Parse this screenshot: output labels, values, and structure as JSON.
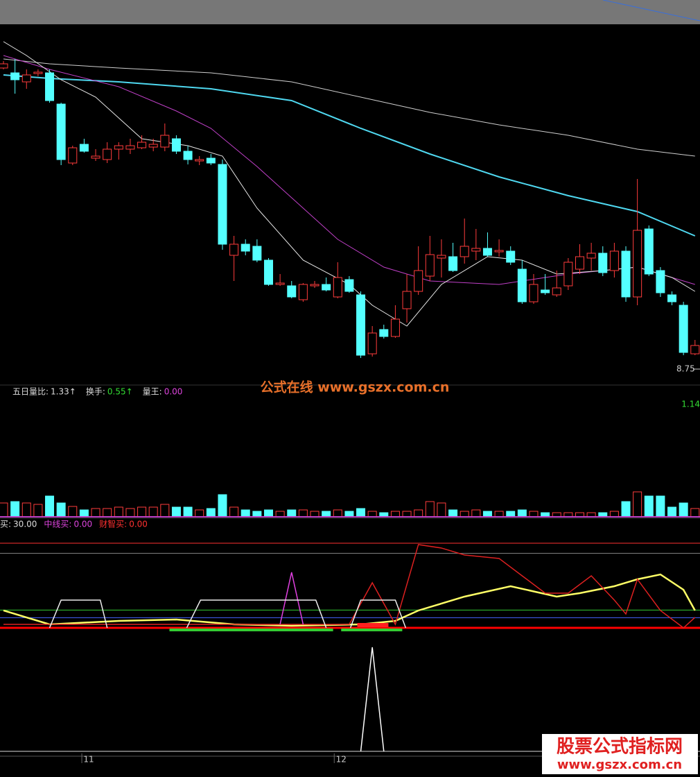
{
  "chart_data": {
    "type": "candlestick",
    "ylim": [
      8.68,
      11.13
    ],
    "up_color": "#ff3c3c",
    "down_color": "#54ffff",
    "ohlc": [
      [
        10.84,
        10.89,
        10.83,
        10.87
      ],
      [
        10.805,
        10.905,
        10.655,
        10.755
      ],
      [
        10.74,
        10.83,
        10.69,
        10.79
      ],
      [
        10.8,
        10.83,
        10.78,
        10.81
      ],
      [
        10.805,
        10.83,
        10.59,
        10.605
      ],
      [
        10.58,
        10.59,
        10.14,
        10.18
      ],
      [
        10.155,
        10.28,
        10.14,
        10.265
      ],
      [
        10.29,
        10.33,
        10.23,
        10.24
      ],
      [
        10.19,
        10.255,
        10.17,
        10.205
      ],
      [
        10.18,
        10.305,
        10.155,
        10.255
      ],
      [
        10.255,
        10.305,
        10.18,
        10.28
      ],
      [
        10.255,
        10.33,
        10.22,
        10.28
      ],
      [
        10.265,
        10.355,
        10.255,
        10.305
      ],
      [
        10.27,
        10.33,
        10.24,
        10.29
      ],
      [
        10.27,
        10.44,
        10.24,
        10.355
      ],
      [
        10.33,
        10.355,
        10.22,
        10.24
      ],
      [
        10.24,
        10.28,
        10.145,
        10.18
      ],
      [
        10.17,
        10.205,
        10.14,
        10.18
      ],
      [
        10.19,
        10.22,
        10.14,
        10.155
      ],
      [
        10.145,
        10.18,
        9.53,
        9.57
      ],
      [
        9.49,
        9.63,
        9.305,
        9.57
      ],
      [
        9.57,
        9.605,
        9.49,
        9.52
      ],
      [
        9.555,
        9.605,
        9.44,
        9.455
      ],
      [
        9.455,
        9.47,
        9.27,
        9.28
      ],
      [
        9.28,
        9.355,
        9.27,
        9.29
      ],
      [
        9.27,
        9.305,
        9.18,
        9.19
      ],
      [
        9.17,
        9.29,
        9.155,
        9.28
      ],
      [
        9.27,
        9.305,
        9.255,
        9.28
      ],
      [
        9.28,
        9.33,
        9.23,
        9.24
      ],
      [
        9.19,
        9.44,
        9.18,
        9.33
      ],
      [
        9.315,
        9.34,
        9.22,
        9.23
      ],
      [
        9.205,
        9.23,
        8.75,
        8.77
      ],
      [
        8.78,
        8.98,
        8.76,
        8.93
      ],
      [
        8.955,
        8.99,
        8.89,
        8.905
      ],
      [
        8.905,
        9.13,
        8.895,
        9.03
      ],
      [
        9.105,
        9.355,
        9.005,
        9.23
      ],
      [
        9.23,
        9.555,
        9.205,
        9.38
      ],
      [
        9.34,
        9.63,
        9.305,
        9.495
      ],
      [
        9.47,
        9.605,
        9.33,
        9.49
      ],
      [
        9.48,
        9.58,
        9.37,
        9.38
      ],
      [
        9.48,
        9.755,
        9.43,
        9.555
      ],
      [
        9.52,
        9.68,
        9.455,
        9.54
      ],
      [
        9.54,
        9.655,
        9.48,
        9.49
      ],
      [
        9.515,
        9.605,
        9.48,
        9.525
      ],
      [
        9.52,
        9.555,
        9.42,
        9.44
      ],
      [
        9.39,
        9.455,
        9.14,
        9.155
      ],
      [
        9.155,
        9.355,
        9.14,
        9.28
      ],
      [
        9.24,
        9.355,
        9.205,
        9.22
      ],
      [
        9.205,
        9.38,
        9.19,
        9.255
      ],
      [
        9.27,
        9.47,
        9.24,
        9.44
      ],
      [
        9.39,
        9.57,
        9.355,
        9.48
      ],
      [
        9.47,
        9.58,
        9.38,
        9.505
      ],
      [
        9.505,
        9.555,
        9.34,
        9.365
      ],
      [
        9.38,
        9.58,
        9.33,
        9.52
      ],
      [
        9.52,
        9.555,
        9.155,
        9.19
      ],
      [
        9.19,
        10.04,
        9.13,
        9.67
      ],
      [
        9.68,
        9.705,
        9.34,
        9.355
      ],
      [
        9.38,
        9.405,
        9.19,
        9.22
      ],
      [
        9.205,
        9.23,
        9.13,
        9.155
      ],
      [
        9.13,
        9.155,
        8.77,
        8.79
      ],
      [
        8.78,
        8.88,
        8.77,
        8.84
      ]
    ],
    "ma": [
      {
        "color": "#4fd8f0",
        "x": [
          0,
          4,
          10,
          18,
          25,
          31,
          37,
          43,
          49,
          55,
          60
        ],
        "values": [
          10.79,
          10.765,
          10.74,
          10.69,
          10.605,
          10.405,
          10.22,
          10.055,
          9.92,
          9.805,
          9.63
        ]
      },
      {
        "color": "#cfcfcf",
        "x": [
          0,
          4,
          10,
          18,
          25,
          31,
          37,
          43,
          49,
          55,
          60
        ],
        "values": [
          10.905,
          10.87,
          10.84,
          10.805,
          10.74,
          10.63,
          10.52,
          10.43,
          10.355,
          10.255,
          10.205
        ]
      },
      {
        "color": "#c040c8",
        "x": [
          0,
          4,
          10,
          15,
          18,
          22,
          26,
          29,
          33,
          37,
          43,
          49,
          55,
          60
        ],
        "values": [
          10.93,
          10.83,
          10.705,
          10.53,
          10.405,
          10.13,
          9.83,
          9.605,
          9.405,
          9.305,
          9.28,
          9.355,
          9.405,
          9.28
        ]
      },
      {
        "color": "#e8e8e8",
        "x": [
          0,
          2,
          5,
          8,
          12,
          16,
          19,
          22,
          26,
          30,
          32,
          35,
          38,
          42,
          45,
          48,
          52,
          55,
          58,
          60
        ],
        "values": [
          11.03,
          10.93,
          10.755,
          10.63,
          10.33,
          10.28,
          10.205,
          9.83,
          9.455,
          9.28,
          9.13,
          8.98,
          9.28,
          9.48,
          9.455,
          9.355,
          9.38,
          9.405,
          9.33,
          9.23
        ]
      }
    ],
    "low_label": 8.75,
    "watermark": "公式在线  www.gszx.com.cn",
    "volume": {
      "ylim": [
        0,
        180
      ],
      "legend": [
        {
          "label": "五日量比:",
          "value": "1.33↑",
          "color": "#ddd"
        },
        {
          "label": "换手:",
          "value": "0.55↑",
          "color": "#33dd33"
        },
        {
          "label": "量王:",
          "value": "0.00",
          "color": "#dd44dd"
        }
      ],
      "right_label": "1.14",
      "values": [
        20,
        22,
        20,
        18,
        30,
        20,
        15,
        10,
        12,
        12,
        14,
        12,
        14,
        14,
        18,
        14,
        14,
        10,
        12,
        32,
        14,
        10,
        8,
        10,
        8,
        10,
        10,
        8,
        8,
        10,
        8,
        12,
        8,
        6,
        8,
        8,
        10,
        22,
        20,
        10,
        8,
        10,
        8,
        8,
        8,
        10,
        8,
        6,
        6,
        6,
        6,
        6,
        6,
        8,
        22,
        36,
        30,
        30,
        14,
        20,
        12
      ]
    },
    "indicator": {
      "ylim": [
        0,
        100
      ],
      "legend": [
        {
          "label": "买:",
          "value": "30.00",
          "color": "#ddd"
        },
        {
          "label": "中线买:",
          "value": "0.00",
          "color": "#dd44dd"
        },
        {
          "label": "财智买:",
          "value": "0.00",
          "color": "#ff3030"
        }
      ],
      "levels": [
        {
          "value": 100,
          "color": "#ff3030"
        },
        {
          "value": 88,
          "color": "#888888"
        },
        {
          "value": 21,
          "color": "#33cc33"
        },
        {
          "value": 12,
          "color": "#4466ff"
        },
        {
          "value": 0,
          "color": "#ff0000"
        }
      ],
      "series": [
        {
          "color": "#ffff66",
          "x": [
            0,
            4,
            10,
            15,
            20,
            25,
            31,
            34,
            36,
            40,
            44,
            48,
            50,
            53,
            55,
            57,
            59,
            60
          ],
          "values": [
            20.5,
            4.1,
            8.2,
            9.8,
            4.1,
            2.5,
            4.1,
            8.2,
            20.5,
            36.9,
            49.2,
            36.9,
            41,
            49.2,
            57.4,
            63.1,
            45,
            20.5
          ]
        },
        {
          "color": "#dd2020",
          "x": [
            0,
            30,
            32,
            34,
            36,
            38,
            40,
            43,
            45,
            47,
            49,
            51,
            53,
            54,
            55,
            57,
            59,
            60
          ],
          "values": [
            4.1,
            4.1,
            53.3,
            4.1,
            98.4,
            94.3,
            86.1,
            82,
            61.5,
            41,
            41,
            61.5,
            32.8,
            16.4,
            57.4,
            20.5,
            0,
            12.3
          ]
        },
        {
          "color": "#e040e0",
          "x": [
            24,
            25,
            26
          ],
          "values": [
            4.1,
            65.6,
            4.1
          ]
        },
        {
          "color": "#eeeeee",
          "x": [
            4,
            5,
            8.4,
            9,
            9.5,
            15.9,
            17.1,
            27.1,
            28,
            28.5,
            30.1,
            31,
            34,
            34.9
          ],
          "values": [
            0,
            32.8,
            32.8,
            0,
            null,
            0,
            32.8,
            32.8,
            0,
            null,
            0,
            32.8,
            32.8,
            0
          ]
        }
      ],
      "bands": [
        {
          "from": 14.4,
          "to": 28.6,
          "color": "#33cc33"
        },
        {
          "from": 29.3,
          "to": 34.6,
          "color": "#33cc33"
        },
        {
          "from": 30.7,
          "to": 33.4,
          "color": "#ff2020"
        }
      ]
    },
    "signal": {
      "ylim": [
        0,
        1
      ],
      "x": [
        31,
        32,
        33
      ],
      "values": [
        0,
        1,
        0
      ]
    },
    "xticks": [
      {
        "value": 7.4,
        "label": "11"
      },
      {
        "value": 29.3,
        "label": "12"
      }
    ],
    "logo": {
      "title": "股票公式指标网",
      "url": "www.gszx.com.cn"
    }
  }
}
